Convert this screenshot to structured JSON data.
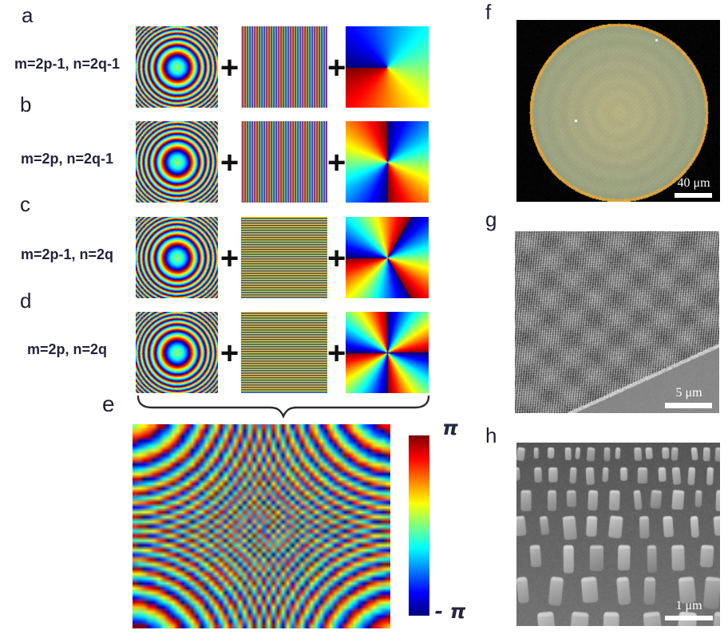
{
  "plus": "+",
  "rows": [
    {
      "label": "a",
      "formula": "m=2p-1, n=2q-1",
      "lens": "fresnel-phase",
      "grating": "vertical",
      "vortex_charge": 1
    },
    {
      "label": "b",
      "formula": "m=2p, n=2q-1",
      "lens": "fresnel-phase",
      "grating": "vertical",
      "vortex_charge": 2
    },
    {
      "label": "c",
      "formula": "m=2p-1, n=2q",
      "lens": "fresnel-phase",
      "grating": "horizontal",
      "vortex_charge": 3
    },
    {
      "label": "d",
      "formula": "m=2p, n=2q",
      "lens": "fresnel-phase",
      "grating": "horizontal",
      "vortex_charge": 4
    }
  ],
  "combined": {
    "label": "e",
    "pattern": "multiplexed-phase-hologram"
  },
  "colorbar": {
    "max": "π",
    "min": "- π",
    "colormap": "jet"
  },
  "micrographs": [
    {
      "label": "f",
      "scale_bar": "40 μm",
      "type": "optical-top-view-circular-metasurface",
      "colors": {
        "background": "#000000",
        "disc": "#aaa87e",
        "rim": "#dda43e"
      }
    },
    {
      "label": "g",
      "scale_bar": "5 μm",
      "type": "sem-tilted-nanopillar-array",
      "colors": {
        "substrate": "#868686"
      }
    },
    {
      "label": "h",
      "scale_bar": "1 μm",
      "type": "sem-closeup-nanopillars",
      "colors": {
        "pillar": "#aaaaaa"
      }
    }
  ]
}
